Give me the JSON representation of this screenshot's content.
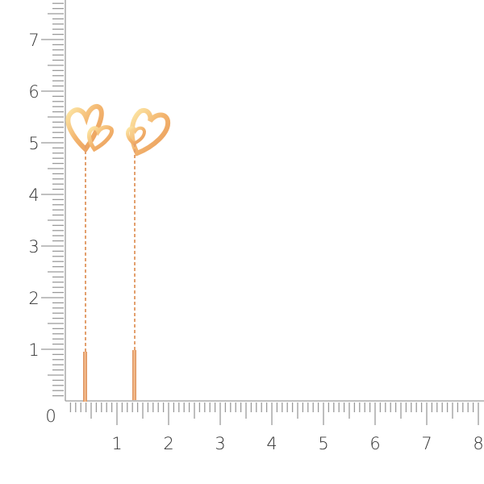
{
  "ruler": {
    "origin_label": "0",
    "x_labels": [
      "1",
      "2",
      "3",
      "4",
      "5",
      "6",
      "7",
      "8"
    ],
    "y_labels": [
      "1",
      "2",
      "3",
      "4",
      "5",
      "6",
      "7"
    ],
    "tick_color": "#9a9a9a",
    "label_color": "#333333"
  },
  "product": {
    "subject": "heart-earrings",
    "metal_color": "#f0b070",
    "highlight_color": "#fde9a8"
  }
}
